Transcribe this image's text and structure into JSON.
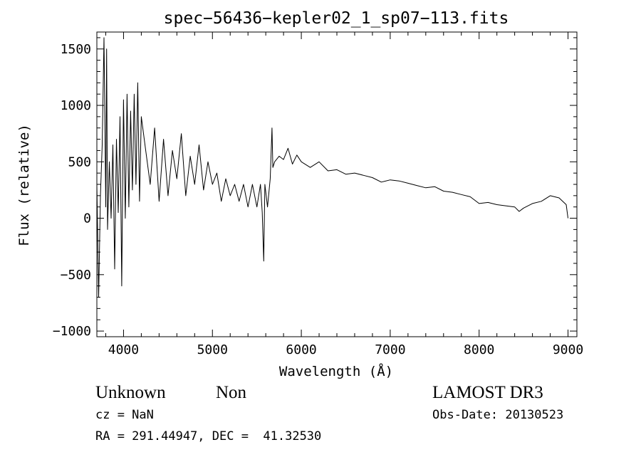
{
  "chart_data": {
    "type": "line",
    "title": "spec−56436−kepler02_1_sp07−113.fits",
    "xlabel": "Wavelength (Å)",
    "ylabel": "Flux (relative)",
    "xlim": [
      3700,
      9100
    ],
    "ylim": [
      -1050,
      1650
    ],
    "xticks": [
      4000,
      5000,
      6000,
      7000,
      8000,
      9000
    ],
    "xtick_labels": [
      "4000",
      "5000",
      "6000",
      "7000",
      "8000",
      "9000"
    ],
    "yticks": [
      -1000,
      -500,
      0,
      500,
      1000,
      1500
    ],
    "ytick_labels": [
      "−1000",
      "−500",
      "0",
      "500",
      "1000",
      "1500"
    ],
    "grid": false,
    "series": [
      {
        "color": "#000000",
        "x": [
          3700,
          3720,
          3740,
          3760,
          3780,
          3800,
          3810,
          3820,
          3840,
          3860,
          3880,
          3900,
          3920,
          3940,
          3960,
          3980,
          4000,
          4020,
          4040,
          4060,
          4080,
          4100,
          4120,
          4140,
          4160,
          4180,
          4200,
          4250,
          4300,
          4350,
          4400,
          4450,
          4500,
          4550,
          4600,
          4650,
          4700,
          4750,
          4800,
          4850,
          4900,
          4950,
          5000,
          5050,
          5100,
          5150,
          5200,
          5250,
          5300,
          5350,
          5400,
          5450,
          5500,
          5540,
          5560,
          5577,
          5590,
          5620,
          5650,
          5670,
          5680,
          5700,
          5750,
          5800,
          5850,
          5900,
          5950,
          6000,
          6100,
          6200,
          6300,
          6400,
          6500,
          6600,
          6700,
          6800,
          6900,
          7000,
          7100,
          7200,
          7300,
          7400,
          7500,
          7600,
          7700,
          7800,
          7900,
          8000,
          8100,
          8200,
          8300,
          8400,
          8450,
          8500,
          8600,
          8700,
          8800,
          8900,
          8980,
          9000
        ],
        "y": [
          300,
          -700,
          200,
          650,
          1600,
          100,
          1500,
          -100,
          500,
          0,
          650,
          -450,
          700,
          50,
          900,
          -600,
          1050,
          0,
          1100,
          100,
          950,
          250,
          1100,
          300,
          1200,
          150,
          900,
          600,
          300,
          800,
          150,
          700,
          200,
          600,
          350,
          750,
          200,
          550,
          300,
          650,
          250,
          500,
          300,
          400,
          150,
          350,
          200,
          300,
          150,
          300,
          100,
          300,
          100,
          300,
          50,
          -380,
          300,
          100,
          350,
          800,
          450,
          500,
          550,
          520,
          620,
          480,
          560,
          500,
          450,
          500,
          420,
          430,
          390,
          400,
          380,
          360,
          320,
          340,
          330,
          310,
          290,
          270,
          280,
          240,
          230,
          210,
          190,
          130,
          140,
          120,
          110,
          100,
          60,
          90,
          130,
          150,
          200,
          180,
          120,
          0
        ]
      }
    ]
  },
  "footer": {
    "object_class": "Unknown",
    "object_subclass": "Non",
    "survey": "LAMOST DR3",
    "cz": "cz = NaN",
    "obs_date": "Obs-Date: 20130523",
    "coords": "RA = 291.44947, DEC =  41.32530"
  }
}
